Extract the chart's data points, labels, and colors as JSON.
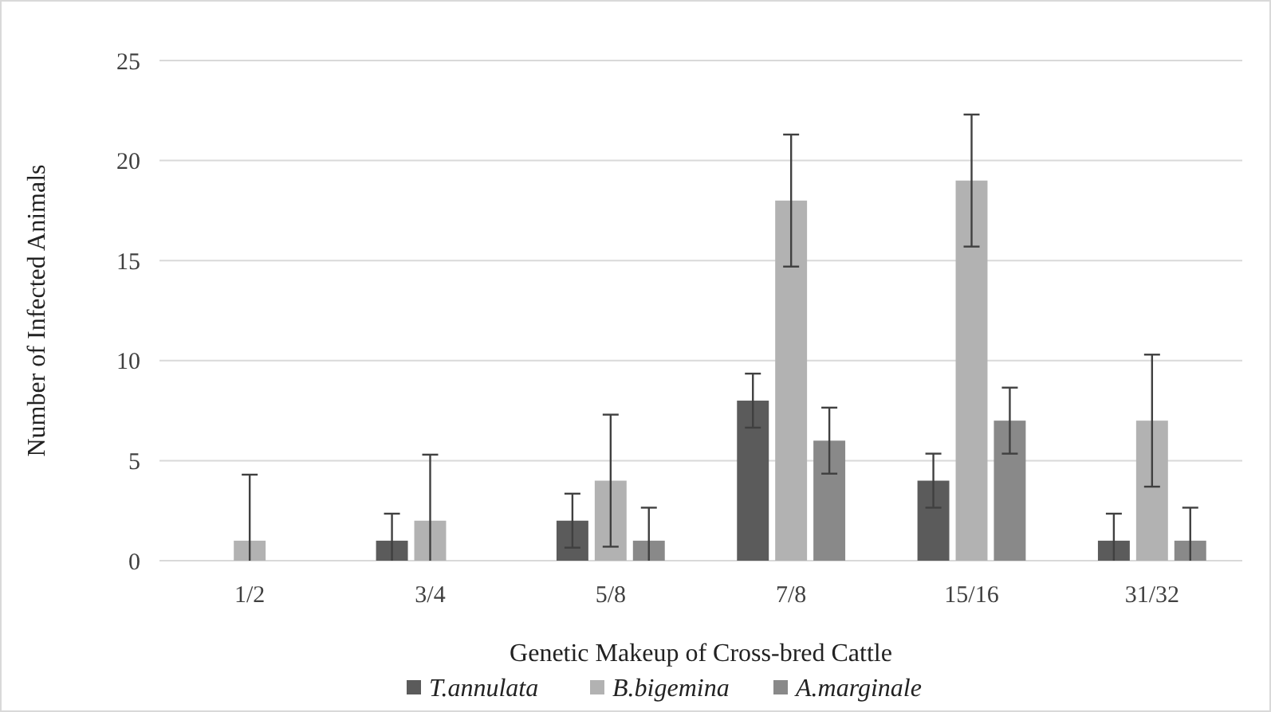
{
  "chart_data": {
    "type": "bar",
    "xlabel": "Genetic Makeup of Cross-bred Cattle",
    "ylabel": "Number of Infected Animals",
    "categories": [
      "1/2",
      "3/4",
      "5/8",
      "7/8",
      "15/16",
      "31/32"
    ],
    "series": [
      {
        "name": "T.annulata",
        "color": "#5b5b5b",
        "values": [
          0,
          1,
          2,
          8,
          4,
          1
        ],
        "errors": [
          null,
          [
            0,
            2.35
          ],
          1.35,
          1.35,
          1.35,
          [
            0,
            2.35
          ]
        ]
      },
      {
        "name": "B.bigemina",
        "color": "#b2b2b2",
        "values": [
          1,
          2,
          4,
          18,
          19,
          7
        ],
        "errors": [
          [
            0,
            4.3
          ],
          [
            0,
            5.3
          ],
          3.3,
          3.3,
          3.3,
          3.3
        ]
      },
      {
        "name": "A.marginale",
        "color": "#898989",
        "values": [
          0,
          0,
          1,
          6,
          7,
          1
        ],
        "errors": [
          null,
          null,
          [
            0,
            2.65
          ],
          1.65,
          1.65,
          [
            0,
            2.65
          ]
        ]
      }
    ],
    "ylim": [
      0,
      25
    ],
    "yticks": [
      0,
      5,
      10,
      15,
      20,
      25
    ],
    "grid": "y",
    "legend": "bottom"
  }
}
